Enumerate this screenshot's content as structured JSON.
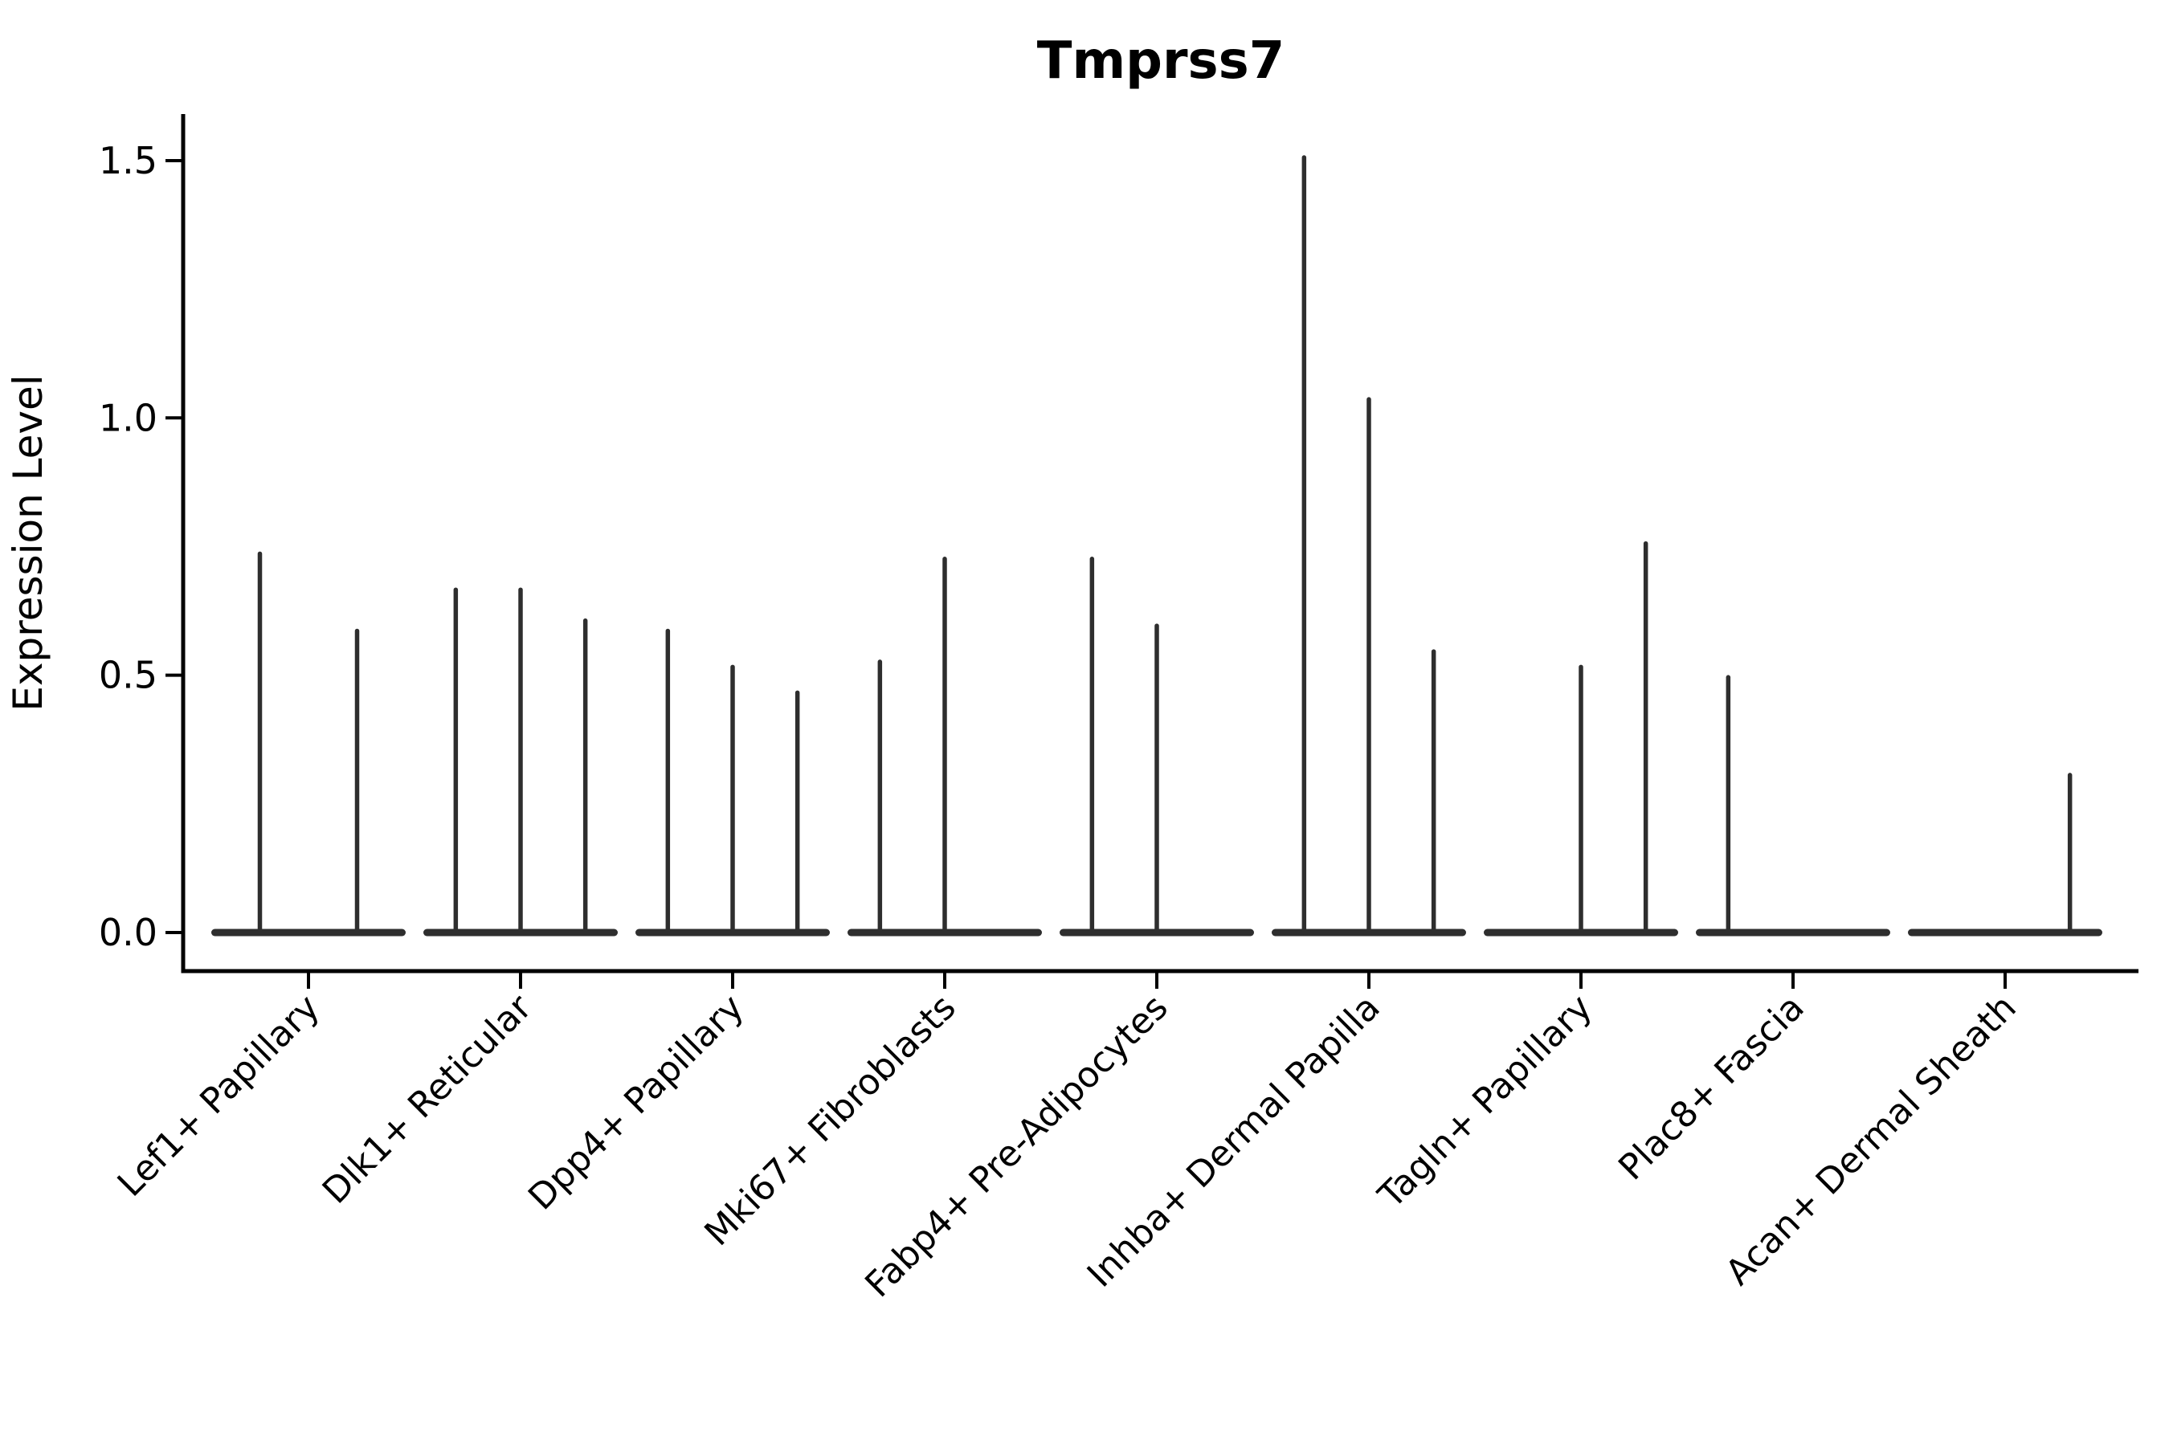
{
  "title": "Tmprss7",
  "ylabel": "Expression Level",
  "colors": {
    "violin": "#2e2e2e",
    "axis": "#000000",
    "text": "#000000",
    "background": "#ffffff"
  },
  "chart_data": {
    "type": "violin",
    "title": "Tmprss7",
    "xlabel": "",
    "ylabel": "Expression Level",
    "ylim": [
      0,
      1.59
    ],
    "yticks": [
      0.0,
      0.5,
      1.0,
      1.5
    ],
    "yticklabels": [
      "0.0",
      "0.5",
      "1.0",
      "1.5"
    ],
    "grid": false,
    "legend": "none",
    "categories": [
      {
        "label": "Lef1+ Papillary",
        "violin_max_values": [
          0.74,
          0.59
        ]
      },
      {
        "label": "Dlk1+ Reticular",
        "violin_max_values": [
          0.67,
          0.67,
          0.61
        ]
      },
      {
        "label": "Dpp4+ Papillary",
        "violin_max_values": [
          0.59,
          0.52,
          0.47
        ]
      },
      {
        "label": "Mki67+ Fibroblasts",
        "violin_max_values": [
          0.53,
          0.73,
          0.0
        ]
      },
      {
        "label": "Fabp4+ Pre-Adipocytes",
        "violin_max_values": [
          0.73,
          0.6,
          0.0
        ]
      },
      {
        "label": "Inhba+ Dermal Papilla",
        "violin_max_values": [
          1.51,
          1.04,
          0.55
        ]
      },
      {
        "label": "Tagln+ Papillary",
        "violin_max_values": [
          0.0,
          0.52,
          0.76
        ]
      },
      {
        "label": "Plac8+ Fascia",
        "violin_max_values": [
          0.5,
          0.0,
          0.0
        ]
      },
      {
        "label": "Acan+ Dermal Sheath",
        "violin_max_values": [
          0.0,
          0.0,
          0.31
        ]
      }
    ]
  }
}
